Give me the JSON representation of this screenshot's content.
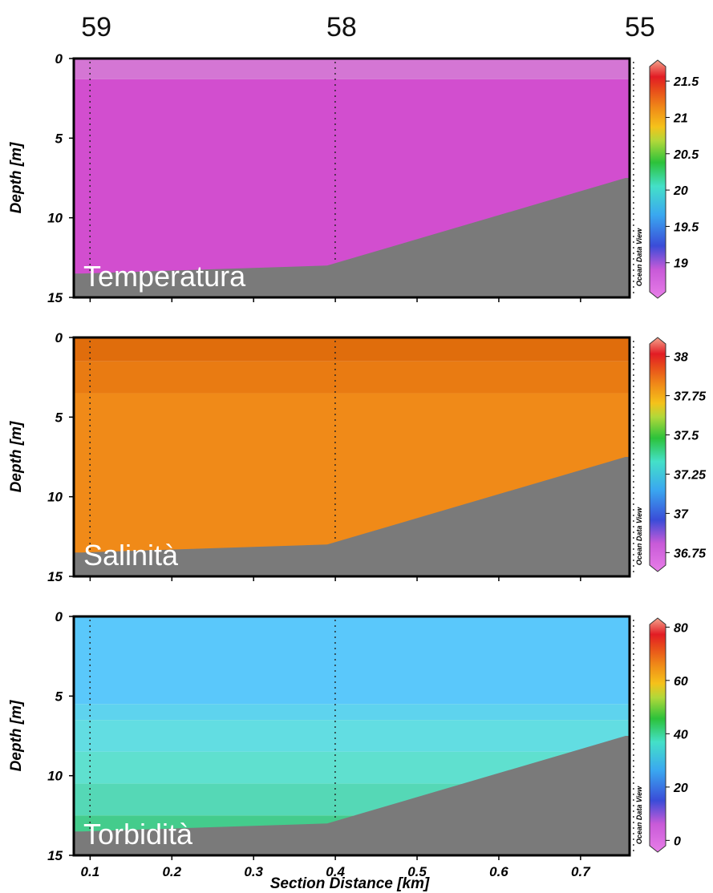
{
  "stations": [
    {
      "label": "59",
      "km": 0.09
    },
    {
      "label": "58",
      "km": 0.39
    },
    {
      "label": "55",
      "km": 0.755
    }
  ],
  "bottom_profile": [
    [
      0.09,
      13.5
    ],
    [
      0.39,
      13.0
    ],
    [
      0.755,
      7.5
    ],
    [
      0.76,
      7.5
    ]
  ],
  "chart_data": [
    {
      "type": "heatmap",
      "title": "Temperatura",
      "ylabel": "Depth [m]",
      "xlim": [
        0.08,
        0.76
      ],
      "ylim": [
        15,
        0
      ],
      "yticks": [
        0,
        5,
        10,
        15
      ],
      "xticks": [
        0.1,
        0.2,
        0.3,
        0.4,
        0.5,
        0.6,
        0.7
      ],
      "watermark": "Ocean Data View",
      "colorbar": {
        "ticks": [
          "21.5",
          "21",
          "20.5",
          "20",
          "19.5",
          "19"
        ],
        "values": [
          21.5,
          21,
          20.5,
          20,
          19.5,
          19
        ],
        "range": [
          18.6,
          21.7
        ]
      },
      "layers": [
        {
          "from_depth": 0,
          "to_depth": 1.3,
          "color": "#d476d4"
        },
        {
          "from_depth": 1.3,
          "to_depth": 15,
          "color": "#d24ecf"
        }
      ]
    },
    {
      "type": "heatmap",
      "title": "Salinità",
      "ylabel": "Depth [m]",
      "xlim": [
        0.08,
        0.76
      ],
      "ylim": [
        15,
        0
      ],
      "yticks": [
        0,
        5,
        10,
        15
      ],
      "xticks": [
        0.1,
        0.2,
        0.3,
        0.4,
        0.5,
        0.6,
        0.7
      ],
      "watermark": "Ocean Data View",
      "colorbar": {
        "ticks": [
          "38",
          "37.75",
          "37.5",
          "37.25",
          "37",
          "36.75"
        ],
        "values": [
          38,
          37.75,
          37.5,
          37.25,
          37,
          36.75
        ],
        "range": [
          36.67,
          38.08
        ]
      },
      "layers": [
        {
          "from_depth": 0,
          "to_depth": 1.5,
          "color": "#e06d0c"
        },
        {
          "from_depth": 1.5,
          "to_depth": 3.5,
          "color": "#e97b12"
        },
        {
          "from_depth": 3.5,
          "to_depth": 15,
          "color": "#f08a18"
        }
      ]
    },
    {
      "type": "heatmap",
      "title": "Torbidità",
      "ylabel": "Depth [m]",
      "xlabel": "Section Distance [km]",
      "xlim": [
        0.08,
        0.76
      ],
      "ylim": [
        15,
        0
      ],
      "yticks": [
        0,
        5,
        10,
        15
      ],
      "xticks": [
        0.1,
        0.2,
        0.3,
        0.4,
        0.5,
        0.6,
        0.7
      ],
      "xticklabels": [
        "0.1",
        "0.2",
        "0.3",
        "0.4",
        "0.5",
        "0.6",
        "0.7"
      ],
      "watermark": "Ocean Data View",
      "colorbar": {
        "ticks": [
          "80",
          "60",
          "40",
          "20",
          "0"
        ],
        "values": [
          80,
          60,
          40,
          20,
          0
        ],
        "range": [
          -2,
          81
        ]
      },
      "layers": [
        {
          "from_depth": 0,
          "to_depth": 5.5,
          "color": "#5ac8fb"
        },
        {
          "from_depth": 5.5,
          "to_depth": 6.5,
          "color": "#5ed3ee"
        },
        {
          "from_depth": 6.5,
          "to_depth": 8.5,
          "color": "#62dde2"
        },
        {
          "from_depth": 8.5,
          "to_depth": 10.5,
          "color": "#5fe0cf"
        },
        {
          "from_depth": 10.5,
          "to_depth": 12.5,
          "color": "#55d8b6"
        },
        {
          "from_depth": 12.5,
          "to_depth": 15,
          "color": "#44cc8c"
        }
      ]
    }
  ]
}
